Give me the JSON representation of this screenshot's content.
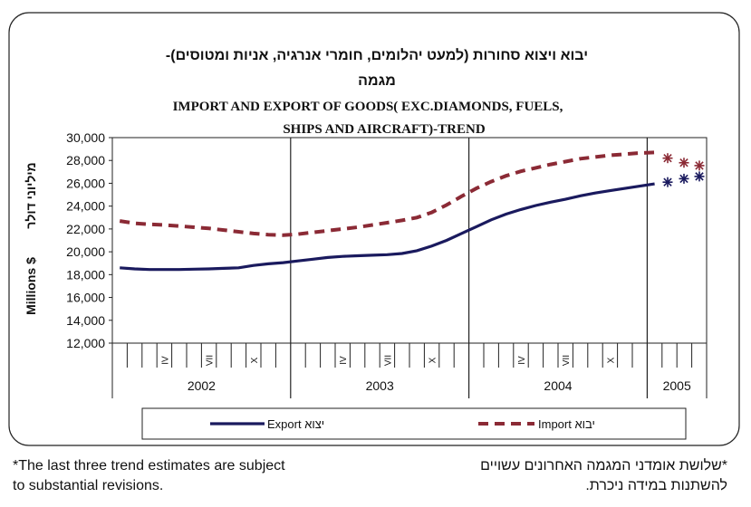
{
  "chart_data": {
    "type": "line",
    "title_hebrew_line1": "יבוא ויצוא סחורות (למעט יהלומים, חומרי אנרגיה, אניות ומטוסים)-",
    "title_hebrew_line2": "מגמה",
    "title_english_line1": "IMPORT AND EXPORT OF GOODS( EXC.DIAMONDS, FUELS,",
    "title_english_line2": "SHIPS AND AIRCRAFT)-TREND",
    "ylabel_english": "Millions $",
    "ylabel_hebrew": "מיליוני דולר",
    "ylim": [
      12000,
      30000
    ],
    "yticks": [
      "30,000",
      "28,000",
      "26,000",
      "24,000",
      "22,000",
      "20,000",
      "18,000",
      "16,000",
      "14,000",
      "12,000"
    ],
    "grid": "vertical separators between years",
    "years": [
      "2002",
      "2003",
      "2004",
      "2005"
    ],
    "month_labels": [
      "IV",
      "VII",
      "X"
    ],
    "x_months_index": "0 = Jan 2002 ... 41 = Jun 2005",
    "series": [
      {
        "name": "Export יצוא",
        "color": "#1a1a5e",
        "style": "solid",
        "values": [
          18600,
          18500,
          18450,
          18450,
          18450,
          18480,
          18500,
          18550,
          18600,
          18800,
          18950,
          19050,
          19200,
          19350,
          19500,
          19600,
          19650,
          19700,
          19750,
          19850,
          20100,
          20500,
          21000,
          21600,
          22200,
          22800,
          23300,
          23700,
          24050,
          24350,
          24600,
          24900,
          25150,
          25350,
          25550,
          25750,
          25950
        ],
        "estimates": [
          26100,
          26400,
          26600
        ]
      },
      {
        "name": "Import יבוא",
        "color": "#8b2a35",
        "style": "dashed",
        "values": [
          22700,
          22500,
          22400,
          22350,
          22250,
          22150,
          22050,
          21900,
          21750,
          21600,
          21500,
          21450,
          21550,
          21700,
          21850,
          22000,
          22150,
          22350,
          22550,
          22750,
          23000,
          23450,
          24100,
          24850,
          25550,
          26150,
          26650,
          27050,
          27350,
          27650,
          27900,
          28150,
          28300,
          28450,
          28550,
          28650,
          28700
        ],
        "estimates": [
          28200,
          27800,
          27550
        ]
      }
    ]
  },
  "legend": {
    "export_label": "Export יצוא",
    "import_label": "Import יבוא"
  },
  "footnote": {
    "english_line1": "*The last three trend estimates are subject",
    "english_line2": " to substantial revisions.",
    "hebrew_line1": "*שלושת אומדני המגמה האחרונים עשויים",
    "hebrew_line2": "להשתנות במידה ניכרת."
  }
}
